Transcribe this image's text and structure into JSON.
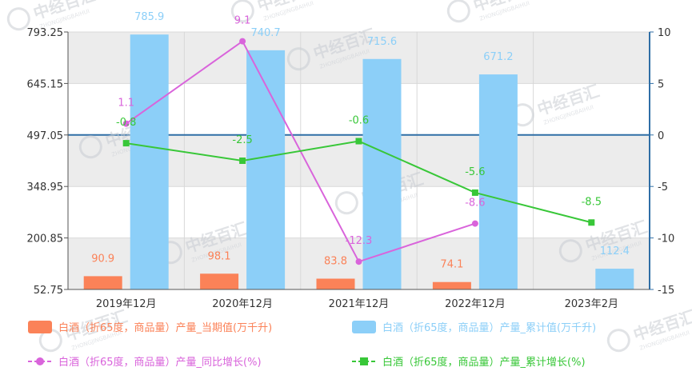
{
  "chart_data": {
    "type": "bar",
    "categories": [
      "2019年12月",
      "2020年12月",
      "2021年12月",
      "2022年12月",
      "2023年2月"
    ],
    "y_left": {
      "ylim": [
        52.75,
        793.25
      ],
      "ticks": [
        "793.25",
        "645.15",
        "497.05",
        "348.95",
        "200.85",
        "52.75"
      ]
    },
    "y_right": {
      "ylim": [
        -15,
        10
      ],
      "ticks": [
        "10",
        "5",
        "0",
        "-5",
        "-10",
        "-15"
      ]
    },
    "grid": true,
    "legend_position": "bottom",
    "series": [
      {
        "name": "白酒（折65度，商品量）产量_当期值(万千升)",
        "kind": "bar",
        "axis": "left",
        "color": "#fb8258",
        "values": [
          90.9,
          98.1,
          83.8,
          74.1,
          null
        ],
        "labels": [
          "90.9",
          "98.1",
          "83.8",
          "74.1",
          ""
        ]
      },
      {
        "name": "白酒（折65度，商品量）产量_累计值(万千升)",
        "kind": "bar",
        "axis": "left",
        "color": "#8ccff8",
        "values": [
          785.9,
          740.7,
          715.6,
          671.2,
          112.4
        ],
        "labels": [
          "785.9",
          "740.7",
          "715.6",
          "671.2",
          "112.4"
        ]
      },
      {
        "name": "白酒（折65度，商品量）产量_同比增长(%)",
        "kind": "line",
        "axis": "right",
        "color": "#d964db",
        "values": [
          1.1,
          9.1,
          -12.3,
          -8.6,
          null
        ],
        "labels": [
          "1.1",
          "9.1",
          "-12.3",
          "-8.6",
          ""
        ]
      },
      {
        "name": "白酒（折65度，商品量）产量_累计增长(%)",
        "kind": "line",
        "axis": "right",
        "color": "#38c738",
        "values": [
          -0.8,
          -2.5,
          -0.6,
          -5.6,
          -8.5
        ],
        "labels": [
          "-0.8",
          "-2.5",
          "-0.6",
          "-5.6",
          "-8.5"
        ]
      }
    ]
  },
  "watermark": {
    "text": "中经百汇",
    "sub": "ZHONGJINGBAIHUI"
  }
}
